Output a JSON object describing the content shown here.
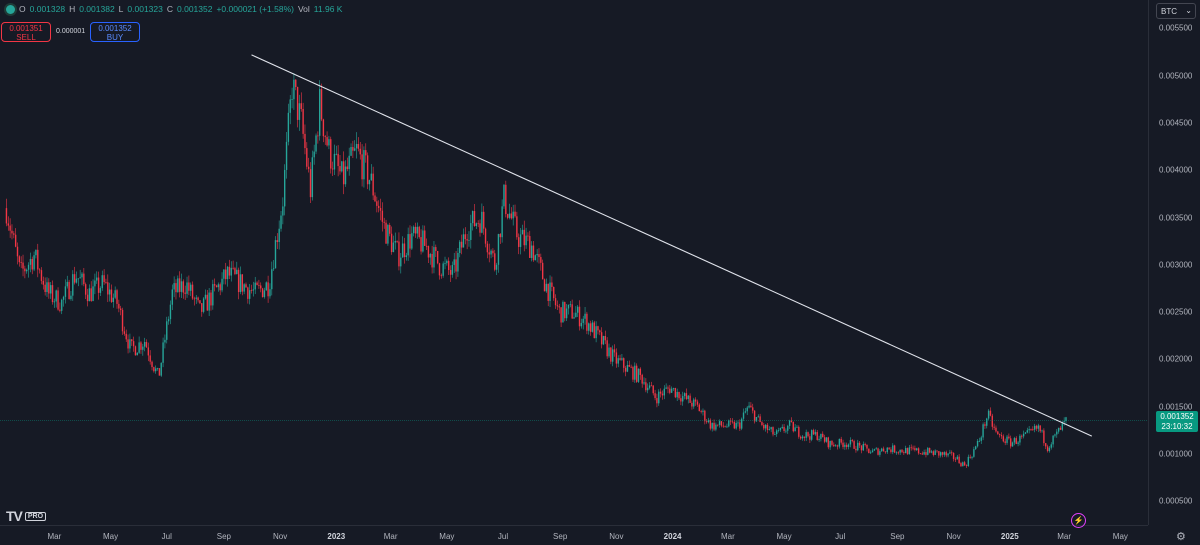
{
  "header": {
    "status_icon": "live-dot-icon",
    "open_label": "O",
    "open": "0.001328",
    "high_label": "H",
    "high": "0.001382",
    "low_label": "L",
    "low": "0.001323",
    "close_label": "C",
    "close": "0.001352",
    "change": "+0.000021 (+1.58%)",
    "vol_label": "Vol",
    "volume": "11.96 K"
  },
  "trade": {
    "sell_price": "0.001351",
    "sell_label": "SELL",
    "spread": "0.000001",
    "buy_price": "0.001352",
    "buy_label": "BUY"
  },
  "symbol": {
    "label": "BTC",
    "icon": "chevron-down-icon"
  },
  "last_price": {
    "price": "0.001352",
    "countdown": "23:10:32"
  },
  "branding": {
    "logo": "TV",
    "badge": "PRO"
  },
  "icons": {
    "bolt": "lightning-icon",
    "settings": "gear-icon"
  },
  "colors": {
    "up": "#26a69a",
    "down": "#f23645",
    "background": "#161a25",
    "trendline": "#e0e3eb",
    "buy": "#2962ff"
  },
  "chart_data": {
    "type": "candlestick",
    "y_ticks": [
      "0.005500",
      "0.005000",
      "0.004500",
      "0.004000",
      "0.003500",
      "0.003000",
      "0.002500",
      "0.002000",
      "0.001500",
      "0.001000",
      "0.000500"
    ],
    "x_ticks": [
      {
        "label": "Mar",
        "year": false
      },
      {
        "label": "May",
        "year": false
      },
      {
        "label": "Jul",
        "year": false
      },
      {
        "label": "Sep",
        "year": false
      },
      {
        "label": "Nov",
        "year": false
      },
      {
        "label": "2023",
        "year": true
      },
      {
        "label": "Mar",
        "year": false
      },
      {
        "label": "May",
        "year": false
      },
      {
        "label": "Jul",
        "year": false
      },
      {
        "label": "Sep",
        "year": false
      },
      {
        "label": "Nov",
        "year": false
      },
      {
        "label": "2024",
        "year": true
      },
      {
        "label": "Mar",
        "year": false
      },
      {
        "label": "May",
        "year": false
      },
      {
        "label": "Jul",
        "year": false
      },
      {
        "label": "Sep",
        "year": false
      },
      {
        "label": "Nov",
        "year": false
      },
      {
        "label": "2025",
        "year": true
      },
      {
        "label": "Mar",
        "year": false
      },
      {
        "label": "May",
        "year": false
      }
    ],
    "ylim": [
      0.00025,
      0.0058
    ],
    "last_price": 0.001352,
    "trendline": [
      {
        "date": "2022-10-01",
        "price": 0.00522
      },
      {
        "date": "2025-03-31",
        "price": 0.00119
      }
    ],
    "series": [
      {
        "date": "2022-01-08",
        "close": 0.0036
      },
      {
        "date": "2022-01-23",
        "close": 0.0029
      },
      {
        "date": "2022-02-07",
        "close": 0.0031
      },
      {
        "date": "2022-02-22",
        "close": 0.0027
      },
      {
        "date": "2022-03-09",
        "close": 0.0026
      },
      {
        "date": "2022-03-24",
        "close": 0.0029
      },
      {
        "date": "2022-04-08",
        "close": 0.0027
      },
      {
        "date": "2022-04-23",
        "close": 0.0028
      },
      {
        "date": "2022-05-08",
        "close": 0.0026
      },
      {
        "date": "2022-05-23",
        "close": 0.0021
      },
      {
        "date": "2022-06-07",
        "close": 0.0022
      },
      {
        "date": "2022-06-22",
        "close": 0.0018
      },
      {
        "date": "2022-07-07",
        "close": 0.0027
      },
      {
        "date": "2022-07-22",
        "close": 0.0028
      },
      {
        "date": "2022-08-06",
        "close": 0.0025
      },
      {
        "date": "2022-08-21",
        "close": 0.0027
      },
      {
        "date": "2022-09-05",
        "close": 0.0029
      },
      {
        "date": "2022-09-20",
        "close": 0.0028
      },
      {
        "date": "2022-10-05",
        "close": 0.0027
      },
      {
        "date": "2022-10-20",
        "close": 0.0028
      },
      {
        "date": "2022-11-04",
        "close": 0.0037
      },
      {
        "date": "2022-11-14",
        "close": 0.0049
      },
      {
        "date": "2022-11-24",
        "close": 0.0045
      },
      {
        "date": "2022-12-04",
        "close": 0.0038
      },
      {
        "date": "2022-12-14",
        "close": 0.0047
      },
      {
        "date": "2022-12-24",
        "close": 0.0042
      },
      {
        "date": "2023-01-08",
        "close": 0.0039
      },
      {
        "date": "2023-01-23",
        "close": 0.0042
      },
      {
        "date": "2023-02-07",
        "close": 0.0039
      },
      {
        "date": "2023-02-22",
        "close": 0.0034
      },
      {
        "date": "2023-03-09",
        "close": 0.0031
      },
      {
        "date": "2023-03-24",
        "close": 0.0033
      },
      {
        "date": "2023-04-08",
        "close": 0.0032
      },
      {
        "date": "2023-04-23",
        "close": 0.003
      },
      {
        "date": "2023-05-08",
        "close": 0.0029
      },
      {
        "date": "2023-05-23",
        "close": 0.0034
      },
      {
        "date": "2023-06-07",
        "close": 0.0035
      },
      {
        "date": "2023-06-22",
        "close": 0.003
      },
      {
        "date": "2023-07-02",
        "close": 0.0037
      },
      {
        "date": "2023-07-17",
        "close": 0.0033
      },
      {
        "date": "2023-08-01",
        "close": 0.0032
      },
      {
        "date": "2023-08-16",
        "close": 0.0028
      },
      {
        "date": "2023-08-31",
        "close": 0.0025
      },
      {
        "date": "2023-09-15",
        "close": 0.0025
      },
      {
        "date": "2023-09-30",
        "close": 0.0024
      },
      {
        "date": "2023-10-15",
        "close": 0.0022
      },
      {
        "date": "2023-10-30",
        "close": 0.002
      },
      {
        "date": "2023-11-14",
        "close": 0.0019
      },
      {
        "date": "2023-11-29",
        "close": 0.0018
      },
      {
        "date": "2023-12-14",
        "close": 0.0016
      },
      {
        "date": "2023-12-29",
        "close": 0.0017
      },
      {
        "date": "2024-01-13",
        "close": 0.0016
      },
      {
        "date": "2024-01-28",
        "close": 0.0015
      },
      {
        "date": "2024-02-12",
        "close": 0.0013
      },
      {
        "date": "2024-02-27",
        "close": 0.0013
      },
      {
        "date": "2024-03-13",
        "close": 0.0013
      },
      {
        "date": "2024-03-23",
        "close": 0.0015
      },
      {
        "date": "2024-04-07",
        "close": 0.0013
      },
      {
        "date": "2024-04-22",
        "close": 0.0012
      },
      {
        "date": "2024-05-07",
        "close": 0.0013
      },
      {
        "date": "2024-05-22",
        "close": 0.0012
      },
      {
        "date": "2024-06-06",
        "close": 0.0012
      },
      {
        "date": "2024-06-21",
        "close": 0.0011
      },
      {
        "date": "2024-07-06",
        "close": 0.00112
      },
      {
        "date": "2024-07-21",
        "close": 0.00108
      },
      {
        "date": "2024-08-05",
        "close": 0.00102
      },
      {
        "date": "2024-08-20",
        "close": 0.00106
      },
      {
        "date": "2024-09-04",
        "close": 0.00104
      },
      {
        "date": "2024-09-19",
        "close": 0.00103
      },
      {
        "date": "2024-10-04",
        "close": 0.00102
      },
      {
        "date": "2024-10-19",
        "close": 0.001
      },
      {
        "date": "2024-11-03",
        "close": 0.00096
      },
      {
        "date": "2024-11-13",
        "close": 0.00088
      },
      {
        "date": "2024-11-28",
        "close": 0.00112
      },
      {
        "date": "2024-12-08",
        "close": 0.00142
      },
      {
        "date": "2024-12-18",
        "close": 0.0012
      },
      {
        "date": "2025-01-02",
        "close": 0.00112
      },
      {
        "date": "2025-01-17",
        "close": 0.00118
      },
      {
        "date": "2025-02-01",
        "close": 0.00128
      },
      {
        "date": "2025-02-11",
        "close": 0.00108
      },
      {
        "date": "2025-02-21",
        "close": 0.00121
      },
      {
        "date": "2025-03-03",
        "close": 0.001352
      }
    ]
  }
}
